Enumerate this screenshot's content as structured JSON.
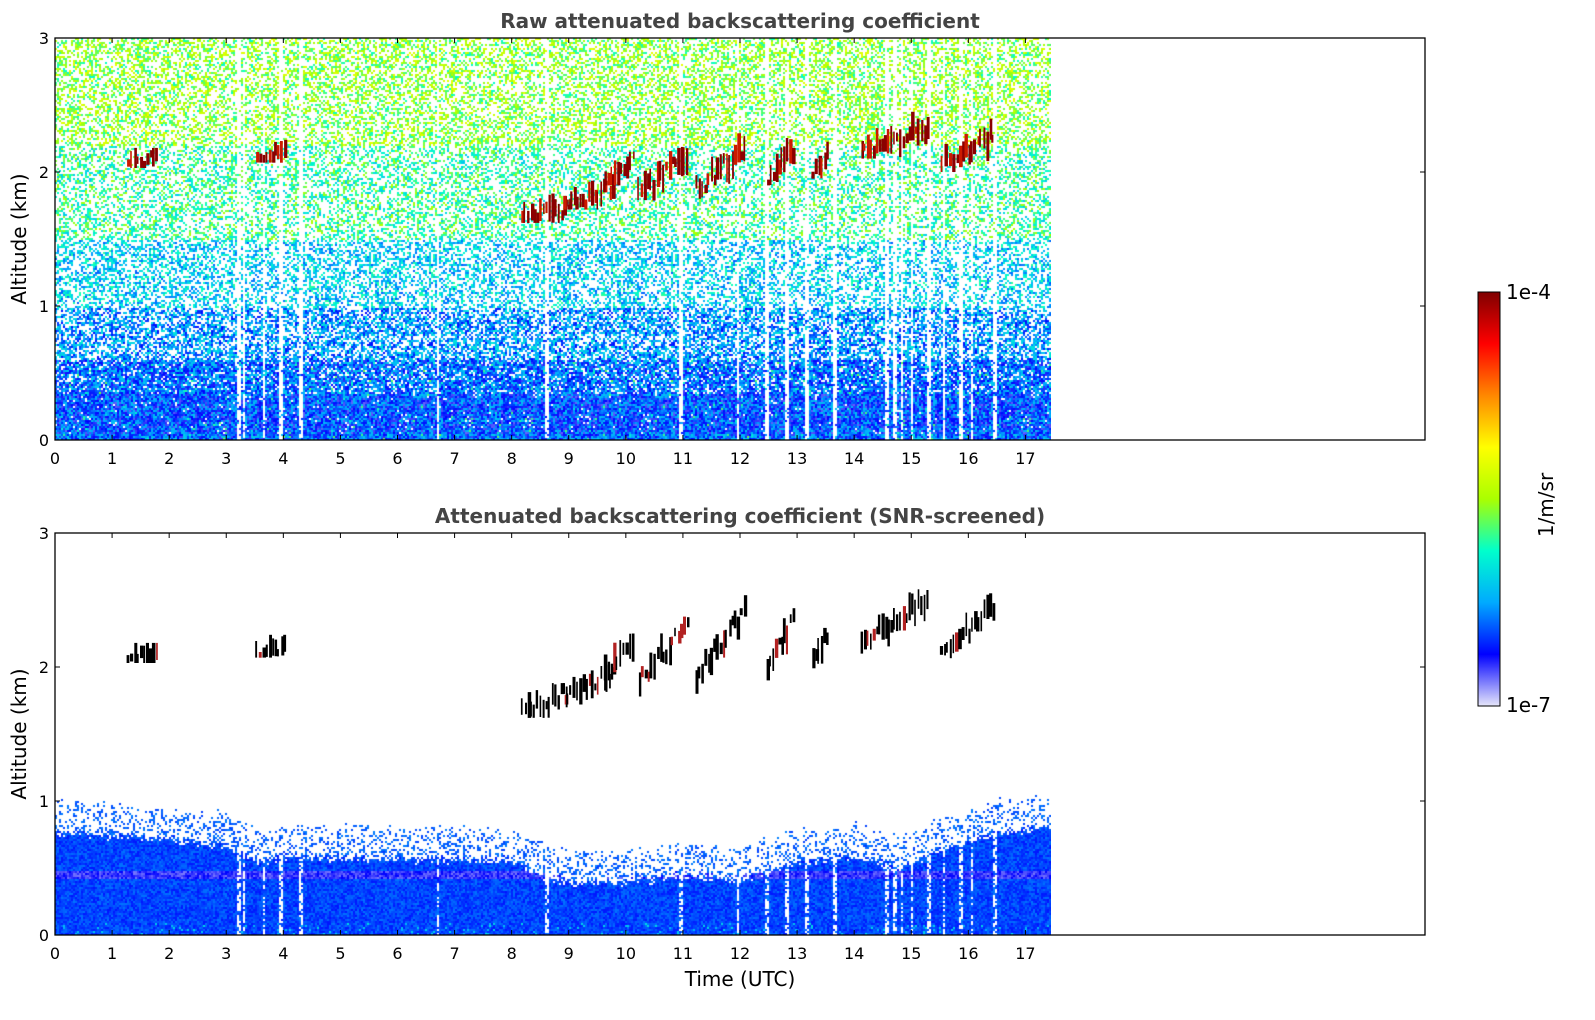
{
  "chart_data": [
    {
      "type": "heatmap",
      "title": "Raw attenuated backscattering coefficient",
      "xlabel": "",
      "ylabel": "Altitude (km)",
      "xlim": [
        0,
        24
      ],
      "ylim": [
        0,
        3
      ],
      "x_ticks": [
        "0",
        "1",
        "2",
        "3",
        "4",
        "5",
        "6",
        "7",
        "8",
        "9",
        "10",
        "11",
        "12",
        "13",
        "14",
        "15",
        "16",
        "17"
      ],
      "y_ticks": [
        "0",
        "1",
        "2",
        "3"
      ],
      "data_extent_x": [
        0,
        17.45
      ],
      "noise_layers": [
        {
          "alt": [
            0.0,
            0.05
          ],
          "density": 1.0,
          "level": 0.2
        },
        {
          "alt": [
            0.05,
            0.35
          ],
          "density": 0.97,
          "level": 0.18
        },
        {
          "alt": [
            0.35,
            0.6
          ],
          "density": 0.85,
          "level": 0.2
        },
        {
          "alt": [
            0.6,
            1.0
          ],
          "density": 0.6,
          "level": 0.24
        },
        {
          "alt": [
            1.0,
            1.5
          ],
          "density": 0.45,
          "level": 0.3
        },
        {
          "alt": [
            1.5,
            2.2
          ],
          "density": 0.4,
          "level": 0.4
        },
        {
          "alt": [
            2.2,
            3.0
          ],
          "density": 0.45,
          "level": 0.48
        }
      ],
      "clouds": [
        {
          "t": [
            1.25,
            1.8
          ],
          "alt": [
            2.03,
            2.18
          ]
        },
        {
          "t": [
            3.5,
            4.05
          ],
          "alt": [
            2.07,
            2.24
          ]
        },
        {
          "t": [
            8.15,
            9.05
          ],
          "alt": [
            1.62,
            1.88
          ]
        },
        {
          "t": [
            8.9,
            9.8
          ],
          "alt": [
            1.72,
            2.02
          ]
        },
        {
          "t": [
            9.6,
            10.15
          ],
          "alt": [
            1.9,
            2.25
          ]
        },
        {
          "t": [
            10.2,
            11.1
          ],
          "alt": [
            1.78,
            2.45
          ]
        },
        {
          "t": [
            11.2,
            12.1
          ],
          "alt": [
            1.8,
            2.55
          ]
        },
        {
          "t": [
            12.45,
            12.95
          ],
          "alt": [
            1.9,
            2.45
          ]
        },
        {
          "t": [
            13.25,
            13.55
          ],
          "alt": [
            1.95,
            2.35
          ]
        },
        {
          "t": [
            14.1,
            15.3
          ],
          "alt": [
            2.1,
            2.58
          ]
        },
        {
          "t": [
            15.5,
            16.45
          ],
          "alt": [
            2.0,
            2.55
          ]
        }
      ],
      "gaps_t": [
        3.2,
        3.3,
        3.65,
        3.95,
        4.3,
        6.7,
        8.6,
        10.95,
        11.95,
        12.45,
        12.8,
        13.15,
        13.65,
        14.55,
        14.7,
        14.82,
        15.0,
        15.3,
        15.55,
        15.85,
        16.05,
        16.45
      ]
    },
    {
      "type": "heatmap",
      "title": "Attenuated backscattering coefficient (SNR-screened)",
      "xlabel": "Time (UTC)",
      "ylabel": "Altitude (km)",
      "xlim": [
        0,
        24
      ],
      "ylim": [
        0,
        3
      ],
      "x_ticks": [
        "0",
        "1",
        "2",
        "3",
        "4",
        "5",
        "6",
        "7",
        "8",
        "9",
        "10",
        "11",
        "12",
        "13",
        "14",
        "15",
        "16",
        "17"
      ],
      "y_ticks": [
        "0",
        "1",
        "2",
        "3"
      ],
      "data_extent_x": [
        0,
        17.45
      ],
      "boundary_layer_top": [
        {
          "t": 0,
          "alt": 0.78
        },
        {
          "t": 1,
          "alt": 0.75
        },
        {
          "t": 2,
          "alt": 0.72
        },
        {
          "t": 3,
          "alt": 0.68
        },
        {
          "t": 3.6,
          "alt": 0.55
        },
        {
          "t": 4,
          "alt": 0.6
        },
        {
          "t": 5,
          "alt": 0.58
        },
        {
          "t": 6,
          "alt": 0.58
        },
        {
          "t": 7,
          "alt": 0.57
        },
        {
          "t": 8,
          "alt": 0.56
        },
        {
          "t": 8.5,
          "alt": 0.45
        },
        {
          "t": 9,
          "alt": 0.4
        },
        {
          "t": 10,
          "alt": 0.4
        },
        {
          "t": 11,
          "alt": 0.45
        },
        {
          "t": 12,
          "alt": 0.42
        },
        {
          "t": 13,
          "alt": 0.55
        },
        {
          "t": 14,
          "alt": 0.6
        },
        {
          "t": 14.8,
          "alt": 0.5
        },
        {
          "t": 15.5,
          "alt": 0.65
        },
        {
          "t": 16.5,
          "alt": 0.78
        },
        {
          "t": 17.45,
          "alt": 0.8
        }
      ],
      "clouds": [
        {
          "t": [
            1.25,
            1.8
          ],
          "alt": [
            2.03,
            2.18
          ]
        },
        {
          "t": [
            3.5,
            4.05
          ],
          "alt": [
            2.07,
            2.24
          ]
        },
        {
          "t": [
            8.15,
            9.05
          ],
          "alt": [
            1.62,
            1.88
          ]
        },
        {
          "t": [
            8.9,
            9.8
          ],
          "alt": [
            1.72,
            2.02
          ]
        },
        {
          "t": [
            9.6,
            10.15
          ],
          "alt": [
            1.9,
            2.25
          ]
        },
        {
          "t": [
            10.2,
            11.1
          ],
          "alt": [
            1.78,
            2.45
          ]
        },
        {
          "t": [
            11.2,
            12.1
          ],
          "alt": [
            1.8,
            2.55
          ]
        },
        {
          "t": [
            12.45,
            12.95
          ],
          "alt": [
            1.9,
            2.45
          ]
        },
        {
          "t": [
            13.25,
            13.55
          ],
          "alt": [
            1.95,
            2.35
          ]
        },
        {
          "t": [
            14.1,
            15.3
          ],
          "alt": [
            2.1,
            2.58
          ]
        },
        {
          "t": [
            15.5,
            16.45
          ],
          "alt": [
            2.0,
            2.55
          ]
        }
      ],
      "gaps_t": [
        3.2,
        3.3,
        3.65,
        3.95,
        4.3,
        6.7,
        8.6,
        10.95,
        11.95,
        12.45,
        12.8,
        13.15,
        13.65,
        14.55,
        14.7,
        14.82,
        15.0,
        15.3,
        15.55,
        15.85,
        16.05,
        16.45
      ]
    }
  ],
  "colorbar": {
    "label": "1/m/sr",
    "min_label": "1e-7",
    "max_label": "1e-4",
    "scale": "log",
    "range": [
      1e-07,
      0.0001
    ],
    "colormap": "jet",
    "colors": [
      "#e6e6fa",
      "#0000ff",
      "#00aaff",
      "#00ffcc",
      "#aaff00",
      "#ffff00",
      "#ff8800",
      "#ff0000",
      "#800000"
    ]
  }
}
